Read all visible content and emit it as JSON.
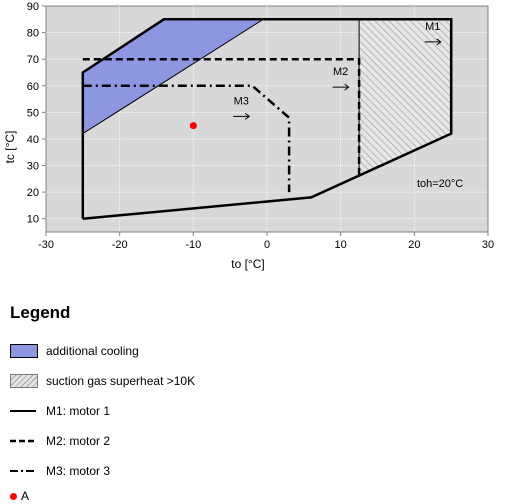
{
  "chart_data": {
    "type": "area",
    "xlabel": "to [°C]",
    "ylabel": "tc [°C]",
    "xlim": [
      -30,
      30
    ],
    "ylim": [
      5,
      90
    ],
    "x_ticks": [
      -30,
      -20,
      -10,
      0,
      10,
      20,
      30
    ],
    "y_ticks": [
      10,
      20,
      30,
      40,
      50,
      60,
      70,
      80,
      90
    ],
    "grid": true,
    "series": [
      {
        "name": "M1: motor 1",
        "style": "solid",
        "points": [
          [
            -25,
            10
          ],
          [
            6,
            18
          ],
          [
            25,
            42
          ],
          [
            25,
            85
          ],
          [
            -14,
            85
          ],
          [
            -25,
            65
          ],
          [
            -25,
            10
          ]
        ]
      },
      {
        "name": "M2: motor 2",
        "style": "dashed",
        "points": [
          [
            -25,
            70
          ],
          [
            12.5,
            70
          ],
          [
            12.5,
            26
          ]
        ]
      },
      {
        "name": "M3: motor 3",
        "style": "dashdot",
        "points": [
          [
            -25,
            60
          ],
          [
            -2,
            60
          ],
          [
            3,
            48
          ],
          [
            3,
            20
          ]
        ]
      }
    ],
    "regions": [
      {
        "name": "additional cooling",
        "color": "#8d96e0",
        "points": [
          [
            -25,
            65
          ],
          [
            -14,
            85
          ],
          [
            -0.5,
            85
          ],
          [
            -25,
            42
          ]
        ]
      },
      {
        "name": "suction gas superheat >10K",
        "pattern": "hatch",
        "points": [
          [
            12.5,
            85
          ],
          [
            25,
            85
          ],
          [
            25,
            42
          ],
          [
            12.5,
            26
          ]
        ]
      }
    ],
    "points": [
      {
        "name": "A",
        "x": -10,
        "y": 45,
        "color": "#ff0000"
      }
    ],
    "curve_labels": [
      {
        "text": "M1",
        "x": 22.5,
        "y": 81
      },
      {
        "text": "M2",
        "x": 10,
        "y": 64
      },
      {
        "text": "M3",
        "x": -3.5,
        "y": 53
      }
    ],
    "annotation": {
      "text": "toh=20°C",
      "x": 23.5,
      "y": 22
    }
  },
  "legend": {
    "title": "Legend",
    "items": [
      {
        "label": "additional cooling"
      },
      {
        "label": "suction gas superheat >10K"
      },
      {
        "label": "M1: motor 1"
      },
      {
        "label": "M2: motor 2"
      },
      {
        "label": "M3: motor 3"
      }
    ],
    "point_label": "A"
  }
}
